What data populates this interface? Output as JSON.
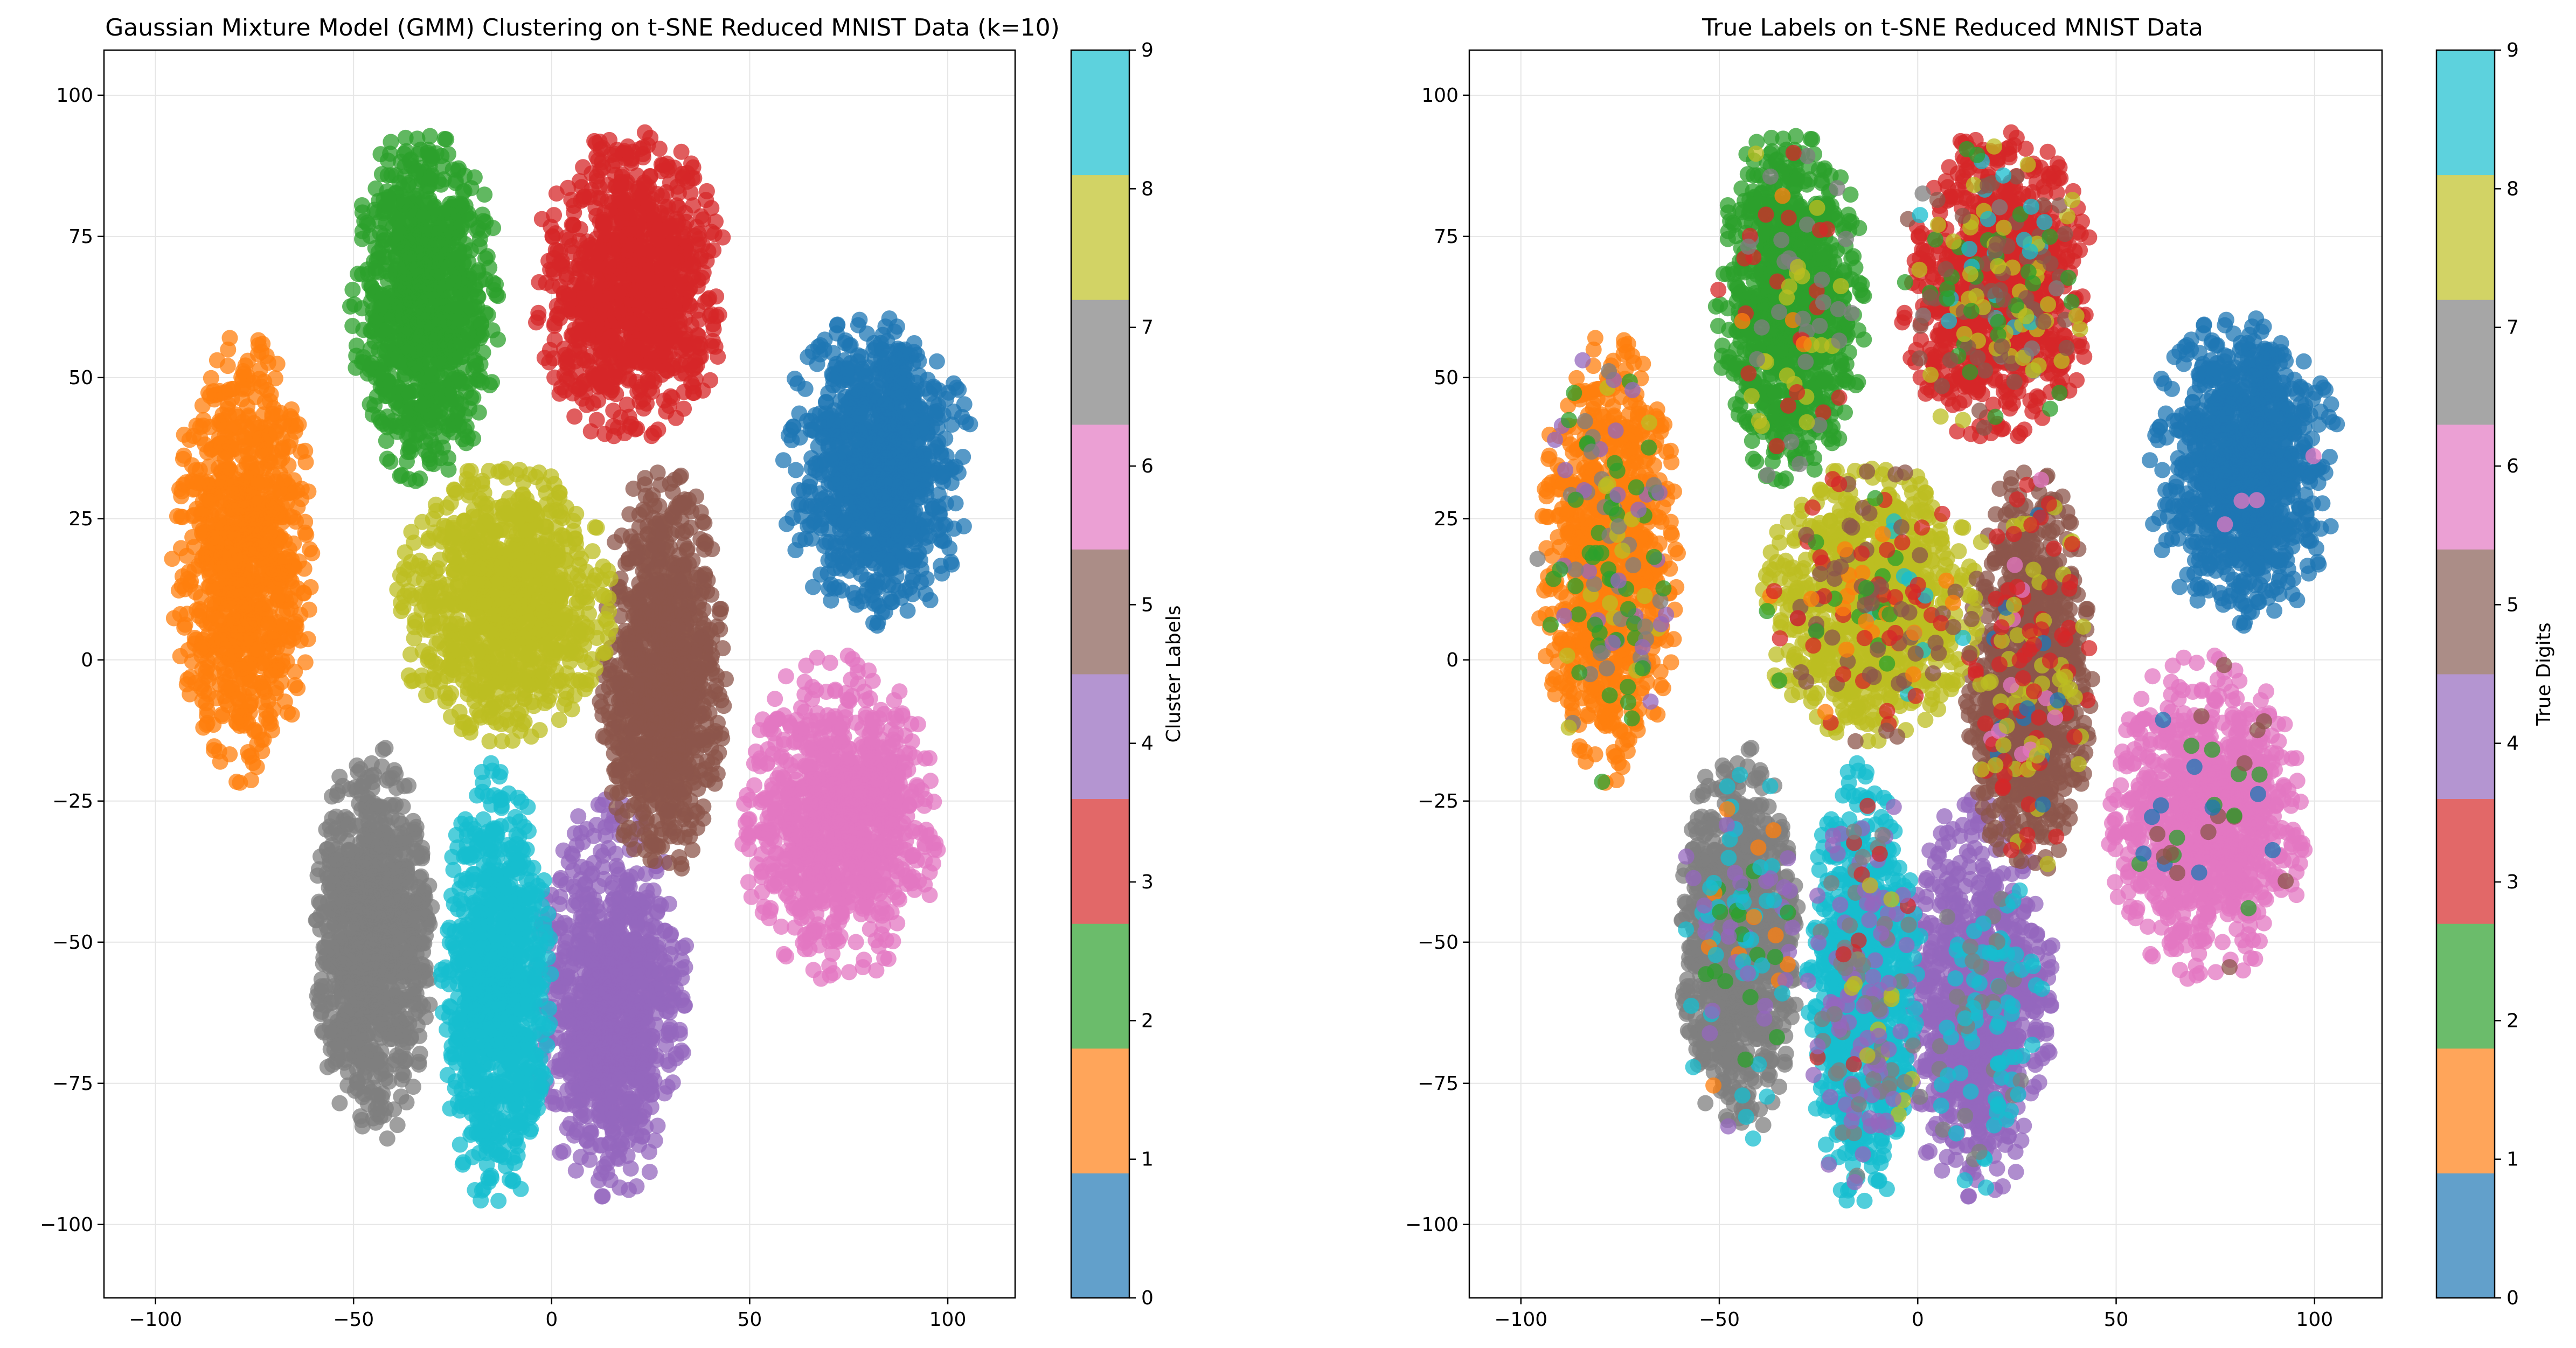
{
  "chart_data": [
    {
      "type": "scatter",
      "title": "Gaussian Mixture Model (GMM) Clustering on t-SNE Reduced MNIST Data (k=10)",
      "xlabel": "",
      "ylabel": "",
      "xlim": [
        -113,
        117
      ],
      "ylim": [
        -113,
        108
      ],
      "xticks": [
        -100,
        -50,
        0,
        50,
        100
      ],
      "yticks": [
        -100,
        -75,
        -50,
        -25,
        0,
        25,
        50,
        75,
        100
      ],
      "grid": true,
      "colorbar": {
        "label": "Cluster Labels",
        "ticks": [
          0,
          1,
          2,
          3,
          4,
          5,
          6,
          7,
          8,
          9
        ]
      },
      "coloring": "cluster",
      "point_count": 10000
    },
    {
      "type": "scatter",
      "title": "True Labels on t-SNE Reduced MNIST Data",
      "xlabel": "",
      "ylabel": "",
      "xlim": [
        -113,
        117
      ],
      "ylim": [
        -113,
        108
      ],
      "xticks": [
        -100,
        -50,
        0,
        50,
        100
      ],
      "yticks": [
        -100,
        -75,
        -50,
        -25,
        0,
        25,
        50,
        75,
        100
      ],
      "grid": true,
      "colorbar": {
        "label": "True Digits",
        "ticks": [
          0,
          1,
          2,
          3,
          4,
          5,
          6,
          7,
          8,
          9
        ]
      },
      "coloring": "true",
      "point_count": 10000
    }
  ],
  "class_colors": [
    "#1f77b4",
    "#ff7f0e",
    "#2ca02c",
    "#d62728",
    "#9467bd",
    "#8c564b",
    "#e377c2",
    "#7f7f7f",
    "#bcbd22",
    "#17becf"
  ],
  "colorbar_colors": [
    "#62a0cb",
    "#ffa55a",
    "#6bbc6b",
    "#e26868",
    "#b495d1",
    "#ab8d87",
    "#eba0d4",
    "#a6a6a6",
    "#d2d365",
    "#5dd2dd"
  ],
  "clusters": [
    {
      "label": 0,
      "center": [
        82,
        34
      ],
      "spread": [
        10,
        13
      ],
      "radius_x": 25,
      "radius_y": 28,
      "true_mix": {
        "0": 0.995,
        "6": 0.005
      }
    },
    {
      "label": 1,
      "center": [
        -78,
        18
      ],
      "spread": [
        9,
        20
      ],
      "radius_x": 18,
      "radius_y": 40,
      "true_mix": {
        "1": 0.88,
        "2": 0.05,
        "7": 0.03,
        "4": 0.02,
        "8": 0.02
      }
    },
    {
      "label": 2,
      "center": [
        -32,
        63
      ],
      "spread": [
        9,
        15
      ],
      "radius_x": 19,
      "radius_y": 33,
      "true_mix": {
        "2": 0.93,
        "3": 0.02,
        "8": 0.02,
        "7": 0.02,
        "1": 0.01
      }
    },
    {
      "label": 3,
      "center": [
        20,
        66
      ],
      "spread": [
        11,
        13
      ],
      "radius_x": 25,
      "radius_y": 28,
      "true_mix": {
        "3": 0.85,
        "5": 0.05,
        "8": 0.04,
        "2": 0.03,
        "9": 0.02,
        "7": 0.01
      }
    },
    {
      "label": 4,
      "center": [
        15,
        -60
      ],
      "spread": [
        9,
        15
      ],
      "radius_x": 20,
      "radius_y": 36,
      "true_mix": {
        "4": 0.9,
        "9": 0.08,
        "7": 0.02
      }
    },
    {
      "label": 5,
      "center": [
        28,
        -3
      ],
      "spread": [
        8,
        17
      ],
      "radius_x": 16,
      "radius_y": 38,
      "true_mix": {
        "5": 0.87,
        "8": 0.05,
        "3": 0.05,
        "6": 0.02,
        "0": 0.01
      }
    },
    {
      "label": 6,
      "center": [
        73,
        -28
      ],
      "spread": [
        12,
        12
      ],
      "radius_x": 26,
      "radius_y": 30,
      "true_mix": {
        "6": 0.97,
        "0": 0.01,
        "5": 0.01,
        "2": 0.01
      }
    },
    {
      "label": 7,
      "center": [
        -45,
        -50
      ],
      "spread": [
        8,
        16
      ],
      "radius_x": 15,
      "radius_y": 36,
      "true_mix": {
        "7": 0.9,
        "9": 0.04,
        "4": 0.03,
        "2": 0.02,
        "1": 0.01
      }
    },
    {
      "label": 8,
      "center": [
        -12,
        10
      ],
      "spread": [
        13,
        12
      ],
      "radius_x": 28,
      "radius_y": 25,
      "true_mix": {
        "8": 0.86,
        "5": 0.05,
        "3": 0.04,
        "2": 0.02,
        "1": 0.02,
        "9": 0.01
      }
    },
    {
      "label": 9,
      "center": [
        -14,
        -58
      ],
      "spread": [
        7,
        17
      ],
      "radius_x": 14,
      "radius_y": 40,
      "true_mix": {
        "9": 0.84,
        "4": 0.1,
        "7": 0.04,
        "3": 0.01,
        "8": 0.01
      }
    }
  ]
}
